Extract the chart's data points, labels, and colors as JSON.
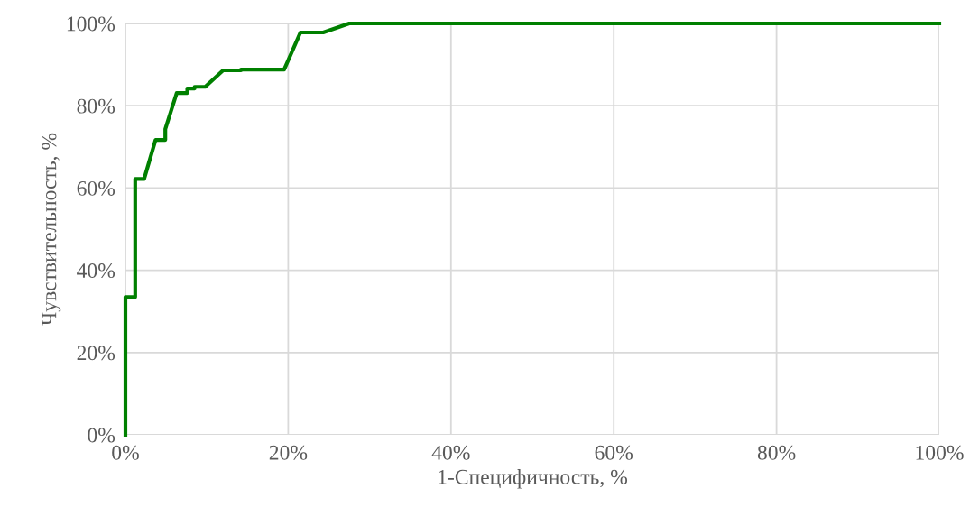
{
  "chart_data": {
    "type": "line",
    "xlabel": "1-Специфичность, %",
    "ylabel": "Чувствительность, %",
    "series": [
      {
        "color": "#008000",
        "x": [
          0,
          0,
          1.2,
          1.2,
          2.3,
          3.7,
          4.9,
          4.9,
          6.3,
          7.6,
          7.6,
          8.5,
          8.5,
          9.8,
          12.0,
          14.2,
          14.2,
          19.5,
          21.5,
          24.3,
          27.5,
          100
        ],
        "values": [
          0,
          33.5,
          33.5,
          62.2,
          62.2,
          71.7,
          71.7,
          74.3,
          83.1,
          83.1,
          84.2,
          84.2,
          84.6,
          84.6,
          88.6,
          88.6,
          88.8,
          88.8,
          97.8,
          97.8,
          100,
          100
        ]
      }
    ],
    "xlim": [
      0,
      100
    ],
    "ylim": [
      0,
      100
    ],
    "xticks": [
      {
        "value": 0,
        "label": "0%"
      },
      {
        "value": 20,
        "label": "20%"
      },
      {
        "value": 40,
        "label": "40%"
      },
      {
        "value": 60,
        "label": "60%"
      },
      {
        "value": 80,
        "label": "80%"
      },
      {
        "value": 100,
        "label": "100%"
      }
    ],
    "yticks": [
      {
        "value": 0,
        "label": "0%"
      },
      {
        "value": 20,
        "label": "20%"
      },
      {
        "value": 40,
        "label": "40%"
      },
      {
        "value": 60,
        "label": "60%"
      },
      {
        "value": 80,
        "label": "80%"
      },
      {
        "value": 100,
        "label": "100%"
      }
    ],
    "grid": true,
    "marker": "none",
    "line_style": "solid"
  }
}
